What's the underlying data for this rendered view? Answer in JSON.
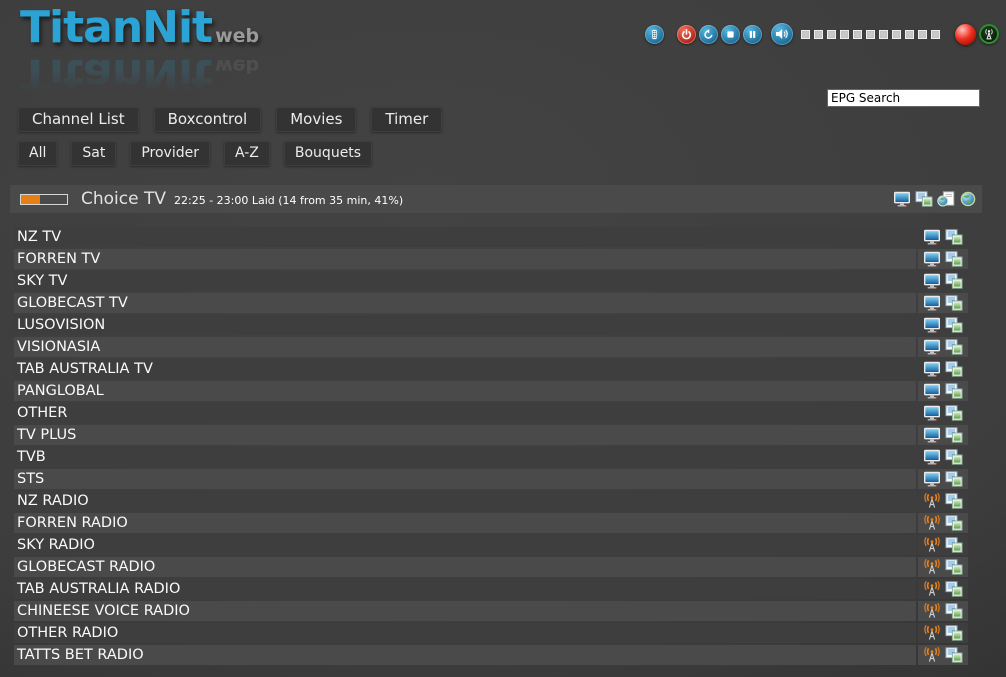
{
  "app": {
    "logo_main": "TitanNit",
    "logo_sub": "web"
  },
  "toolbar": {
    "icons": [
      "remote-icon",
      "power-icon",
      "refresh-icon",
      "stop-icon",
      "pause-icon",
      "speaker-icon"
    ],
    "volume_blocks": 11,
    "indicators": [
      "record-ball",
      "stream-antenna"
    ]
  },
  "search": {
    "value": "EPG Search"
  },
  "nav": {
    "main": [
      "Channel List",
      "Boxcontrol",
      "Movies",
      "Timer"
    ],
    "filters": [
      "All",
      "Sat",
      "Provider",
      "A-Z",
      "Bouquets"
    ]
  },
  "now_playing": {
    "channel": "Choice TV",
    "details": "22:25 - 23:00 Laid (14 from 35 min, 41%)",
    "progress_percent": 41,
    "action_icons": [
      "tv-icon",
      "channel-windows-icon",
      "web-epg-icon",
      "globe-icon"
    ]
  },
  "channels": [
    {
      "name": "NZ TV",
      "type": "tv"
    },
    {
      "name": "FORREN TV",
      "type": "tv"
    },
    {
      "name": "SKY TV",
      "type": "tv"
    },
    {
      "name": "GLOBECAST TV",
      "type": "tv"
    },
    {
      "name": "LUSOVISION",
      "type": "tv"
    },
    {
      "name": "VISIONASIA",
      "type": "tv"
    },
    {
      "name": "TAB AUSTRALIA TV",
      "type": "tv"
    },
    {
      "name": "PANGLOBAL",
      "type": "tv"
    },
    {
      "name": "OTHER",
      "type": "tv"
    },
    {
      "name": "TV PLUS",
      "type": "tv"
    },
    {
      "name": "TVB",
      "type": "tv"
    },
    {
      "name": "STS",
      "type": "tv"
    },
    {
      "name": "NZ RADIO",
      "type": "radio"
    },
    {
      "name": "FORREN RADIO",
      "type": "radio"
    },
    {
      "name": "SKY RADIO",
      "type": "radio"
    },
    {
      "name": "GLOBECAST RADIO",
      "type": "radio"
    },
    {
      "name": "TAB AUSTRALIA RADIO",
      "type": "radio"
    },
    {
      "name": "CHINEESE VOICE RADIO",
      "type": "radio"
    },
    {
      "name": "OTHER RADIO",
      "type": "radio"
    },
    {
      "name": "TATTS BET RADIO",
      "type": "radio"
    }
  ],
  "colors": {
    "accent_blue": "#2ba3d4",
    "progress_orange": "#e67f17",
    "row_dark": "#3e3e3e",
    "row_light": "#4a4a4a",
    "bar_bg": "#4a4a4a",
    "record_red": "#e02020",
    "stream_green": "#2f8f2f"
  }
}
